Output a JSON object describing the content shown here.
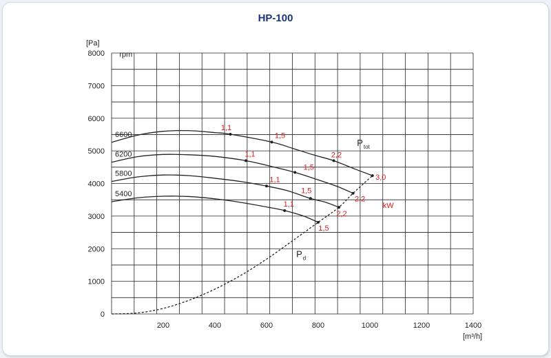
{
  "chart_data": {
    "type": "line",
    "title": "HP-100",
    "xlabel": "[m³/h]",
    "ylabel": "[Pa]",
    "xlim": [
      0,
      1400
    ],
    "ylim": [
      0,
      8000
    ],
    "xticks": [
      200,
      400,
      600,
      800,
      1000,
      1200,
      1400
    ],
    "yticks": [
      0,
      1000,
      2000,
      3000,
      4000,
      5000,
      6000,
      7000,
      8000
    ],
    "grid": true,
    "speed_unit": "rpm",
    "power_unit": "kW",
    "colors": {
      "curve": "#222222",
      "power_label": "#d81b1b",
      "title": "#1a3577"
    },
    "series": [
      {
        "name": "6600",
        "points": [
          [
            0,
            5260
          ],
          [
            100,
            5480
          ],
          [
            200,
            5600
          ],
          [
            300,
            5620
          ],
          [
            400,
            5560
          ],
          [
            460,
            5510
          ],
          [
            620,
            5270
          ],
          [
            700,
            5080
          ],
          [
            780,
            4880
          ],
          [
            860,
            4700
          ],
          [
            940,
            4450
          ],
          [
            1010,
            4240
          ]
        ],
        "markers": [
          {
            "x": 460,
            "y": 5510,
            "kw": "1,1"
          },
          {
            "x": 620,
            "y": 5270,
            "kw": "1,5"
          },
          {
            "x": 860,
            "y": 4700,
            "kw": "2,2"
          },
          {
            "x": 1010,
            "y": 4240,
            "kw": "3,0"
          }
        ]
      },
      {
        "name": "6200",
        "points": [
          [
            0,
            4650
          ],
          [
            100,
            4820
          ],
          [
            200,
            4890
          ],
          [
            300,
            4880
          ],
          [
            400,
            4830
          ],
          [
            520,
            4700
          ],
          [
            620,
            4520
          ],
          [
            710,
            4340
          ],
          [
            800,
            4110
          ],
          [
            870,
            3920
          ],
          [
            935,
            3700
          ]
        ],
        "markers": [
          {
            "x": 520,
            "y": 4700,
            "kw": "1,1"
          },
          {
            "x": 710,
            "y": 4340,
            "kw": "1,5"
          },
          {
            "x": 935,
            "y": 3700,
            "kw": "2,2"
          }
        ]
      },
      {
        "name": "5800",
        "points": [
          [
            0,
            4060
          ],
          [
            100,
            4200
          ],
          [
            200,
            4260
          ],
          [
            300,
            4240
          ],
          [
            400,
            4160
          ],
          [
            500,
            4060
          ],
          [
            600,
            3920
          ],
          [
            680,
            3780
          ],
          [
            770,
            3540
          ],
          [
            830,
            3420
          ],
          [
            880,
            3270
          ]
        ],
        "markers": [
          {
            "x": 600,
            "y": 3920,
            "kw": "1,1"
          },
          {
            "x": 770,
            "y": 3540,
            "kw": "1,5"
          },
          {
            "x": 880,
            "y": 3270,
            "kw": "2,2"
          }
        ]
      },
      {
        "name": "5400",
        "points": [
          [
            0,
            3440
          ],
          [
            100,
            3560
          ],
          [
            200,
            3610
          ],
          [
            300,
            3600
          ],
          [
            400,
            3530
          ],
          [
            500,
            3420
          ],
          [
            600,
            3280
          ],
          [
            670,
            3170
          ],
          [
            740,
            3010
          ],
          [
            800,
            2810
          ]
        ],
        "markers": [
          {
            "x": 670,
            "y": 3170,
            "kw": "1,1"
          },
          {
            "x": 800,
            "y": 2810,
            "kw": "1,5"
          }
        ]
      }
    ],
    "dynamic_pressure_curve": {
      "name": "Pd",
      "points": [
        [
          0,
          0
        ],
        [
          100,
          30
        ],
        [
          200,
          170
        ],
        [
          300,
          420
        ],
        [
          400,
          760
        ],
        [
          500,
          1180
        ],
        [
          600,
          1680
        ],
        [
          700,
          2240
        ],
        [
          800,
          2810
        ],
        [
          880,
          3270
        ],
        [
          935,
          3700
        ],
        [
          1010,
          4240
        ]
      ]
    },
    "annotations": [
      {
        "main": "P",
        "sub": "tot",
        "x": 950,
        "y": 5150
      },
      {
        "main": "P",
        "sub": "d",
        "x": 715,
        "y": 1740
      }
    ]
  }
}
